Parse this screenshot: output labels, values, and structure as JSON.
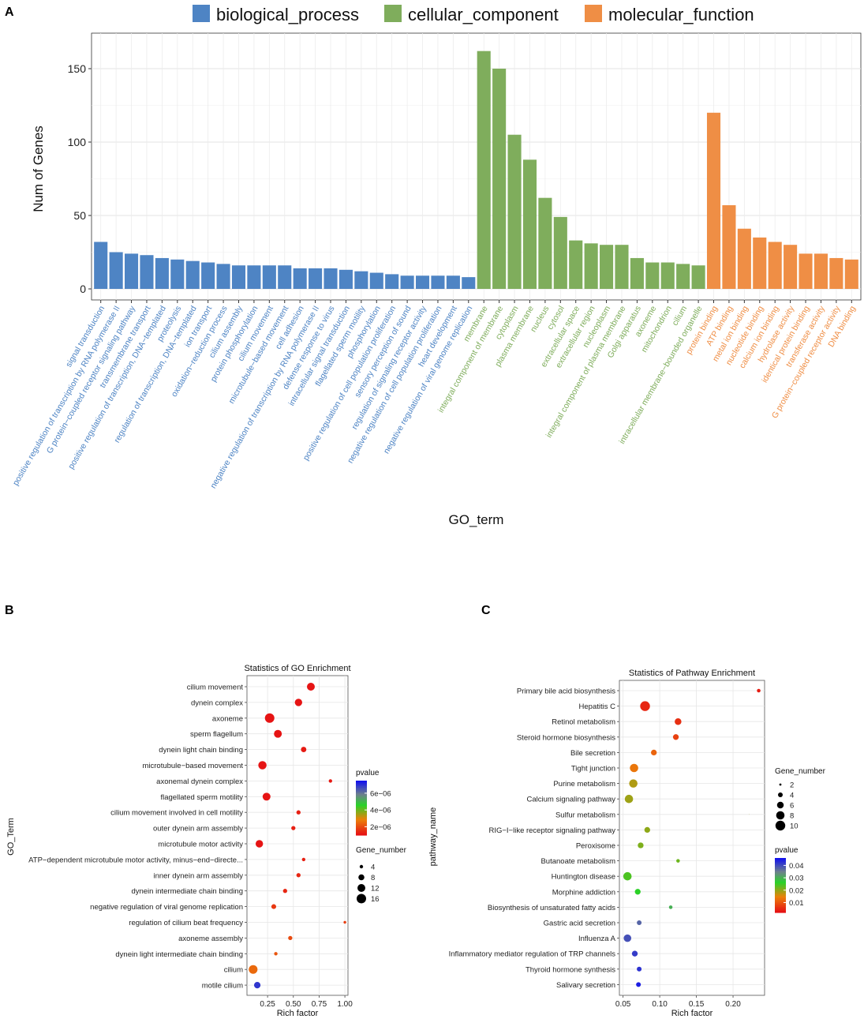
{
  "panels": {
    "a": "A",
    "b": "B",
    "c": "C"
  },
  "chart_data": [
    {
      "type": "bar",
      "xlabel": "GO_term",
      "ylabel": "Num of Genes",
      "ylim": [
        0,
        175
      ],
      "yticks": [
        0,
        50,
        100,
        150
      ],
      "legend": [
        {
          "name": "biological_process",
          "color": "#4e84c4"
        },
        {
          "name": "cellular_component",
          "color": "#7fad5c"
        },
        {
          "name": "molecular_function",
          "color": "#ef8e45"
        }
      ],
      "series": [
        {
          "name": "biological_process",
          "categories": [
            "signal transduction",
            "positive regulation of transcription by RNA polymerase II",
            "G protein−coupled receptor signaling pathway",
            "transmembrane transport",
            "positive regulation of transcription, DNA−templated",
            "proteolysis",
            "regulation of transcription, DNA−templated",
            "ion transport",
            "oxidation−reduction process",
            "cilium assembly",
            "protein phosphorylation",
            "cilium movement",
            "microtubule−based movement",
            "cell adhesion",
            "negative regulation of transcription by RNA polymerase II",
            "defense response to virus",
            "intracellular signal transduction",
            "flagellated sperm motility",
            "phosphorylation",
            "positive regulation of cell population proliferation",
            "sensory perception of sound",
            "regulation of signaling receptor activity",
            "negative regulation of cell population proliferation",
            "heart development",
            "negative regulation of viral genome replication"
          ],
          "values": [
            32,
            25,
            24,
            23,
            21,
            20,
            19,
            18,
            17,
            16,
            16,
            16,
            16,
            14,
            14,
            14,
            13,
            12,
            11,
            10,
            9,
            9,
            9,
            9,
            8
          ]
        },
        {
          "name": "cellular_component",
          "categories": [
            "membrane",
            "integral component of membrane",
            "cytoplasm",
            "plasma membrane",
            "nucleus",
            "cytosol",
            "extracellular space",
            "extracellular region",
            "nucleoplasm",
            "integral component of plasma membrane",
            "Golgi apparatus",
            "axoneme",
            "mitochondrion",
            "cilium",
            "intracellular membrane−bounded organelle"
          ],
          "values": [
            162,
            150,
            105,
            88,
            62,
            49,
            33,
            31,
            30,
            30,
            21,
            18,
            18,
            17,
            16
          ]
        },
        {
          "name": "molecular_function",
          "categories": [
            "protein binding",
            "ATP binding",
            "metal ion binding",
            "nucleotide binding",
            "calcium ion binding",
            "hydrolase activity",
            "identical protein binding",
            "transferase activity",
            "G protein−coupled receptor activity",
            "DNA binding"
          ],
          "values": [
            120,
            57,
            41,
            35,
            32,
            30,
            24,
            24,
            21,
            20
          ]
        }
      ]
    },
    {
      "type": "scatter",
      "title": "Statistics of GO Enrichment",
      "xlabel": "Rich factor",
      "ylabel": "GO_Term",
      "xlim": [
        0.05,
        1.03
      ],
      "xticks": [
        0.25,
        0.5,
        0.75,
        1.0
      ],
      "xtick_labels": [
        "0.25",
        "0.50",
        "0.75",
        "1.00"
      ],
      "legend_pvalue": {
        "title": "pvalue",
        "ticks": [
          "6e−06",
          "4e−06",
          "2e−06"
        ],
        "tick_values": [
          6e-06,
          4e-06,
          2e-06
        ],
        "range": [
          1e-06,
          7.5e-06
        ]
      },
      "legend_size": {
        "title": "Gene_number",
        "values": [
          4,
          8,
          12,
          16
        ]
      },
      "points": [
        {
          "term": "cilium movement",
          "rich_factor": 0.67,
          "gene_number": 12,
          "pvalue": 1e-06
        },
        {
          "term": "dynein complex",
          "rich_factor": 0.55,
          "gene_number": 11,
          "pvalue": 1e-06
        },
        {
          "term": "axoneme",
          "rich_factor": 0.27,
          "gene_number": 16,
          "pvalue": 1e-06
        },
        {
          "term": "sperm flagellum",
          "rich_factor": 0.35,
          "gene_number": 12,
          "pvalue": 1e-06
        },
        {
          "term": "dynein light chain binding",
          "rich_factor": 0.6,
          "gene_number": 7,
          "pvalue": 1.1e-06
        },
        {
          "term": "microtubule−based movement",
          "rich_factor": 0.2,
          "gene_number": 13,
          "pvalue": 1e-06
        },
        {
          "term": "axonemal dynein complex",
          "rich_factor": 0.86,
          "gene_number": 4,
          "pvalue": 1.1e-06
        },
        {
          "term": "flagellated sperm motility",
          "rich_factor": 0.24,
          "gene_number": 12,
          "pvalue": 1e-06
        },
        {
          "term": "cilium movement involved in cell motility",
          "rich_factor": 0.55,
          "gene_number": 5,
          "pvalue": 1.2e-06
        },
        {
          "term": "outer dynein arm assembly",
          "rich_factor": 0.5,
          "gene_number": 5,
          "pvalue": 1.2e-06
        },
        {
          "term": "microtubule motor activity",
          "rich_factor": 0.17,
          "gene_number": 11,
          "pvalue": 1e-06
        },
        {
          "term": "ATP−dependent microtubule motor activity, minus−end−directe...",
          "rich_factor": 0.6,
          "gene_number": 4,
          "pvalue": 1.2e-06
        },
        {
          "term": "inner dynein arm assembly",
          "rich_factor": 0.55,
          "gene_number": 5,
          "pvalue": 1.3e-06
        },
        {
          "term": "dynein intermediate chain binding",
          "rich_factor": 0.42,
          "gene_number": 5,
          "pvalue": 1.3e-06
        },
        {
          "term": "negative regulation of viral genome replication",
          "rich_factor": 0.31,
          "gene_number": 6,
          "pvalue": 1.6e-06
        },
        {
          "term": "regulation of cilium beat frequency",
          "rich_factor": 1.0,
          "gene_number": 3,
          "pvalue": 1.7e-06
        },
        {
          "term": "axoneme assembly",
          "rich_factor": 0.47,
          "gene_number": 5,
          "pvalue": 1.9e-06
        },
        {
          "term": "dynein light intermediate chain binding",
          "rich_factor": 0.33,
          "gene_number": 4,
          "pvalue": 2.1e-06
        },
        {
          "term": "cilium",
          "rich_factor": 0.11,
          "gene_number": 14,
          "pvalue": 2.4e-06
        },
        {
          "term": "motile cilium",
          "rich_factor": 0.15,
          "gene_number": 9,
          "pvalue": 7e-06
        }
      ]
    },
    {
      "type": "scatter",
      "title": "Statistics of Pathway Enrichment",
      "xlabel": "Rich factor",
      "ylabel": "pathway_name",
      "xlim": [
        0.045,
        0.243
      ],
      "xticks": [
        0.05,
        0.1,
        0.15,
        0.2
      ],
      "xtick_labels": [
        "0.05",
        "0.10",
        "0.15",
        "0.20"
      ],
      "legend_size": {
        "title": "Gene_number",
        "values": [
          2,
          4,
          6,
          8,
          10
        ]
      },
      "legend_pvalue": {
        "title": "pvalue",
        "ticks": [
          "0.04",
          "0.03",
          "0.02",
          "0.01"
        ],
        "tick_values": [
          0.04,
          0.03,
          0.02,
          0.01
        ],
        "range": [
          0.002,
          0.046
        ]
      },
      "points": [
        {
          "term": "Primary bile acid biosynthesis",
          "rich_factor": 0.235,
          "gene_number": 3,
          "pvalue": 0.003
        },
        {
          "term": "Hepatitis C",
          "rich_factor": 0.08,
          "gene_number": 10,
          "pvalue": 0.004
        },
        {
          "term": "Retinol metabolism",
          "rich_factor": 0.125,
          "gene_number": 6,
          "pvalue": 0.005
        },
        {
          "term": "Steroid hormone biosynthesis",
          "rich_factor": 0.122,
          "gene_number": 5,
          "pvalue": 0.007
        },
        {
          "term": "Bile secretion",
          "rich_factor": 0.092,
          "gene_number": 5,
          "pvalue": 0.011
        },
        {
          "term": "Tight junction",
          "rich_factor": 0.065,
          "gene_number": 8,
          "pvalue": 0.013
        },
        {
          "term": "Purine metabolism",
          "rich_factor": 0.064,
          "gene_number": 8,
          "pvalue": 0.018
        },
        {
          "term": "Calcium signaling pathway",
          "rich_factor": 0.058,
          "gene_number": 8,
          "pvalue": 0.019
        },
        {
          "term": "Sulfur metabolism",
          "rich_factor": 0.222,
          "gene_number": 1,
          "pvalue": 0.019
        },
        {
          "term": "RIG−I−like receptor signaling pathway",
          "rich_factor": 0.083,
          "gene_number": 5,
          "pvalue": 0.02
        },
        {
          "term": "Peroxisome",
          "rich_factor": 0.074,
          "gene_number": 5,
          "pvalue": 0.021
        },
        {
          "term": "Butanoate metabolism",
          "rich_factor": 0.125,
          "gene_number": 3,
          "pvalue": 0.022
        },
        {
          "term": "Huntington disease",
          "rich_factor": 0.056,
          "gene_number": 8,
          "pvalue": 0.024
        },
        {
          "term": "Morphine addiction",
          "rich_factor": 0.07,
          "gene_number": 5,
          "pvalue": 0.026
        },
        {
          "term": "Biosynthesis of unsaturated fatty acids",
          "rich_factor": 0.115,
          "gene_number": 3,
          "pvalue": 0.03
        },
        {
          "term": "Gastric acid secretion",
          "rich_factor": 0.072,
          "gene_number": 4,
          "pvalue": 0.038
        },
        {
          "term": "Influenza A",
          "rich_factor": 0.056,
          "gene_number": 7,
          "pvalue": 0.04
        },
        {
          "term": "Inflammatory mediator regulation of TRP channels",
          "rich_factor": 0.066,
          "gene_number": 5,
          "pvalue": 0.042
        },
        {
          "term": "Thyroid hormone synthesis",
          "rich_factor": 0.072,
          "gene_number": 4,
          "pvalue": 0.043
        },
        {
          "term": "Salivary secretion",
          "rich_factor": 0.071,
          "gene_number": 4,
          "pvalue": 0.045
        }
      ]
    }
  ]
}
